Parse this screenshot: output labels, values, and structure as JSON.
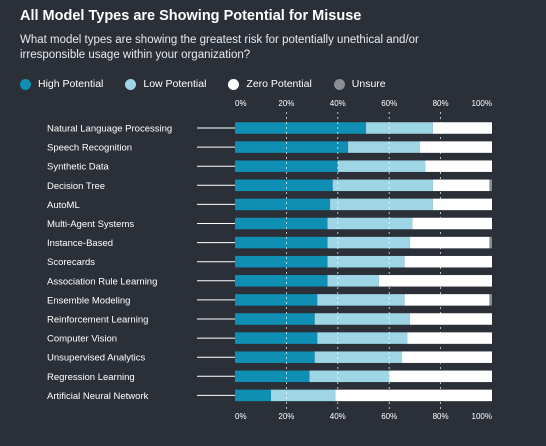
{
  "colors": {
    "background": "#2b3038",
    "high": "#0f8fb3",
    "low": "#9fd6e6",
    "zero": "#ffffff",
    "unsure": "#8a8d92",
    "gridline": "#ffffff",
    "leader": "#ffffff"
  },
  "chart_data": {
    "type": "bar",
    "orientation": "horizontal",
    "stacked": true,
    "title": "All Model Types are Showing Potential for Misuse",
    "subtitle": "What model types are showing the greatest risk for potentially unethical and/or irresponsible usage within your organization?",
    "xlim": [
      0,
      100
    ],
    "x_ticks": [
      "0%",
      "20%",
      "40%",
      "60%",
      "80%",
      "100%"
    ],
    "x_tick_values": [
      0,
      20,
      40,
      60,
      80,
      100
    ],
    "grid": true,
    "legend_position": "top",
    "legend": [
      {
        "name": "High Potential",
        "color_key": "high"
      },
      {
        "name": "Low Potential",
        "color_key": "low"
      },
      {
        "name": "Zero Potential",
        "color_key": "zero"
      },
      {
        "name": "Unsure",
        "color_key": "unsure"
      }
    ],
    "categories": [
      "Natural Language Processing",
      "Speech Recognition",
      "Synthetic Data",
      "Decision Tree",
      "AutoML",
      "Multi-Agent Systems",
      "Instance-Based",
      "Scorecards",
      "Association Rule Learning",
      "Ensemble Modeling",
      "Reinforcement Learning",
      "Computer Vision",
      "Unsupervised Analytics",
      "Regression Learning",
      "Artificial Neural Network"
    ],
    "series": [
      {
        "name": "High Potential",
        "values": [
          51,
          44,
          40,
          38,
          37,
          36,
          36,
          36,
          36,
          32,
          31,
          32,
          31,
          29,
          14
        ]
      },
      {
        "name": "Low Potential",
        "values": [
          26,
          28,
          34,
          39,
          40,
          33,
          32,
          30,
          20,
          34,
          37,
          35,
          34,
          31,
          25
        ]
      },
      {
        "name": "Zero Potential",
        "values": [
          23,
          28,
          26,
          22,
          23,
          31,
          31,
          34,
          44,
          33,
          32,
          33,
          35,
          40,
          61
        ]
      },
      {
        "name": "Unsure",
        "values": [
          0,
          0,
          0,
          1,
          0,
          0,
          1,
          0,
          0,
          1,
          0,
          0,
          0,
          0,
          0
        ]
      }
    ]
  }
}
